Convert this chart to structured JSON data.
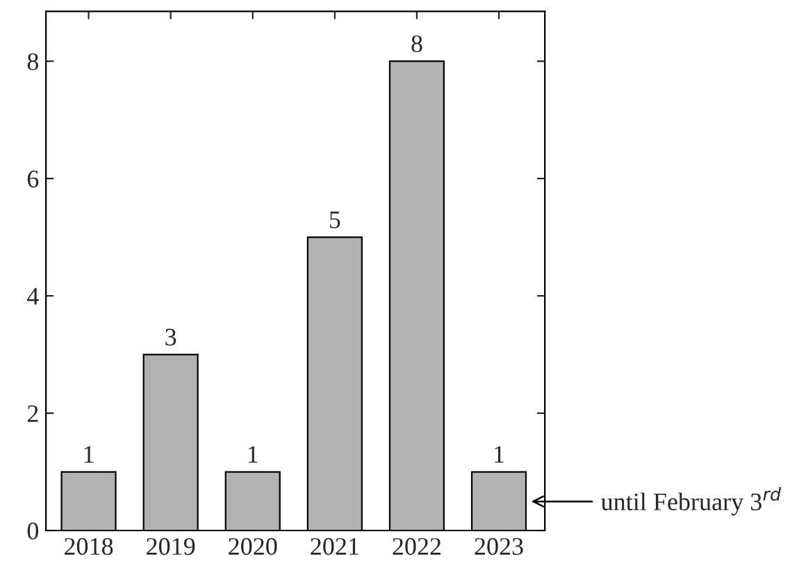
{
  "chart_data": {
    "type": "bar",
    "categories": [
      "2018",
      "2019",
      "2020",
      "2021",
      "2022",
      "2023"
    ],
    "values": [
      1,
      3,
      1,
      5,
      8,
      1
    ],
    "color": "#b3b3b3",
    "ylim": [
      0,
      8.85
    ],
    "yticks": [
      0,
      2,
      4,
      6,
      8
    ],
    "data_labels": true,
    "grid": false,
    "legend": false,
    "annotations": [
      "until February 3$^{rd}$"
    ]
  }
}
